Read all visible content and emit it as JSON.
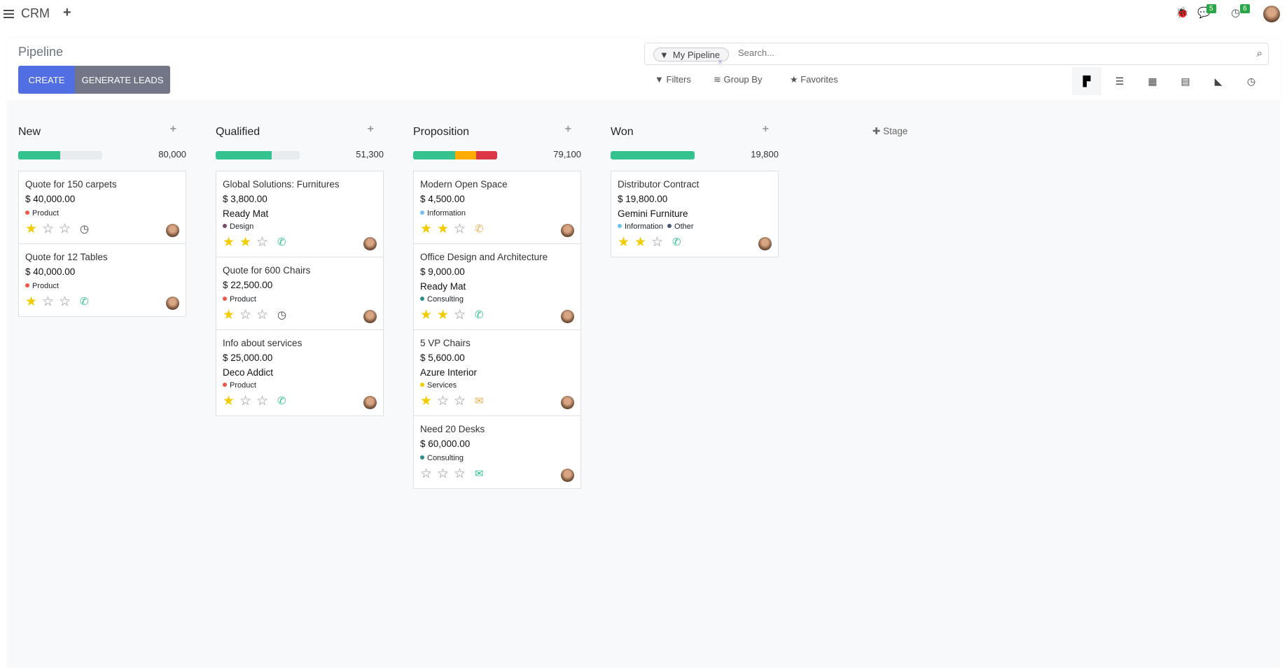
{
  "topbar": {
    "app_name": "CRM",
    "new_icon": "+",
    "messages_count": "5",
    "activities_count": "6"
  },
  "control_panel": {
    "title": "Pipeline",
    "create_label": "CREATE",
    "generate_label": "GENERATE LEADS",
    "facet_label": "My Pipeline",
    "search_placeholder": "Search...",
    "filters_label": "Filters",
    "groupby_label": "Group By",
    "favorites_label": "Favorites",
    "views": [
      "kanban",
      "list",
      "calendar",
      "pivot",
      "graph",
      "activity"
    ],
    "active_view": "kanban"
  },
  "add_stage_label": "Stage",
  "columns": [
    {
      "name": "New",
      "total": "80,000",
      "progress": [
        {
          "pct": 50,
          "color": "#34c38f"
        }
      ],
      "cards": [
        {
          "title": "Quote for 150 carpets",
          "amount": "$ 40,000.00",
          "company": "",
          "tags": [
            {
              "label": "Product",
              "color": "#f0574b"
            }
          ],
          "stars": 1,
          "activity": {
            "icon": "clock-icon",
            "color": "#444"
          }
        },
        {
          "title": "Quote for 12 Tables",
          "amount": "$ 40,000.00",
          "company": "",
          "tags": [
            {
              "label": "Product",
              "color": "#f0574b"
            }
          ],
          "stars": 1,
          "activity": {
            "icon": "phone-icon",
            "color": "#34c38f"
          }
        }
      ]
    },
    {
      "name": "Qualified",
      "total": "51,300",
      "progress": [
        {
          "pct": 67,
          "color": "#34c38f"
        }
      ],
      "cards": [
        {
          "title": "Global Solutions: Furnitures",
          "amount": "$ 3,800.00",
          "company": "Ready Mat",
          "tags": [
            {
              "label": "Design",
              "color": "#7b4a6b"
            }
          ],
          "stars": 2,
          "activity": {
            "icon": "phone-icon",
            "color": "#34c38f"
          }
        },
        {
          "title": "Quote for 600 Chairs",
          "amount": "$ 22,500.00",
          "company": "",
          "tags": [
            {
              "label": "Product",
              "color": "#f0574b"
            }
          ],
          "stars": 1,
          "activity": {
            "icon": "clock-icon",
            "color": "#444"
          }
        },
        {
          "title": "Info about services",
          "amount": "$ 25,000.00",
          "company": "Deco Addict",
          "tags": [
            {
              "label": "Product",
              "color": "#f0574b"
            }
          ],
          "stars": 1,
          "activity": {
            "icon": "phone-icon",
            "color": "#34c38f"
          }
        }
      ]
    },
    {
      "name": "Proposition",
      "total": "79,100",
      "progress": [
        {
          "pct": 50,
          "color": "#34c38f"
        },
        {
          "pct": 25,
          "color": "#ffac00"
        },
        {
          "pct": 25,
          "color": "#dc3545"
        }
      ],
      "cards": [
        {
          "title": "Modern Open Space",
          "amount": "$ 4,500.00",
          "company": "",
          "tags": [
            {
              "label": "Information",
              "color": "#6ec3f0"
            }
          ],
          "stars": 2,
          "activity": {
            "icon": "phone-icon",
            "color": "#f0ad4e"
          }
        },
        {
          "title": "Office Design and Architecture",
          "amount": "$ 9,000.00",
          "company": "Ready Mat",
          "tags": [
            {
              "label": "Consulting",
              "color": "#2e8b8b"
            }
          ],
          "stars": 2,
          "activity": {
            "icon": "phone-icon",
            "color": "#34c38f"
          }
        },
        {
          "title": "5 VP Chairs",
          "amount": "$ 5,600.00",
          "company": "Azure Interior",
          "tags": [
            {
              "label": "Services",
              "color": "#f3cc00"
            }
          ],
          "stars": 1,
          "activity": {
            "icon": "envelope-icon",
            "color": "#f0ad4e"
          }
        },
        {
          "title": "Need 20 Desks",
          "amount": "$ 60,000.00",
          "company": "",
          "tags": [
            {
              "label": "Consulting",
              "color": "#2e8b8b"
            }
          ],
          "stars": 0,
          "activity": {
            "icon": "envelope-icon",
            "color": "#34c38f"
          }
        }
      ]
    },
    {
      "name": "Won",
      "total": "19,800",
      "progress": [
        {
          "pct": 100,
          "color": "#34c38f"
        }
      ],
      "cards": [
        {
          "title": "Distributor Contract",
          "amount": "$ 19,800.00",
          "company": "Gemini Furniture",
          "tags": [
            {
              "label": "Information",
              "color": "#6ec3f0"
            },
            {
              "label": "Other",
              "color": "#4a5578"
            }
          ],
          "stars": 2,
          "activity": {
            "icon": "phone-icon",
            "color": "#34c38f"
          }
        }
      ]
    }
  ]
}
